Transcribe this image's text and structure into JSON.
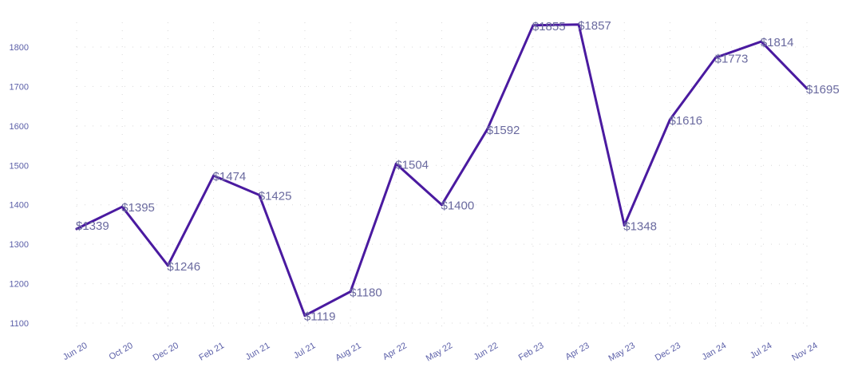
{
  "chart_data": {
    "type": "line",
    "categories": [
      "Jun 20",
      "Oct 20",
      "Dec 20",
      "Feb 21",
      "Jun 21",
      "Jul 21",
      "Aug 21",
      "Apr 22",
      "May 22",
      "Jun 22",
      "Feb 23",
      "Apr 23",
      "May 23",
      "Dec 23",
      "Jan 24",
      "Jul 24",
      "Nov 24"
    ],
    "series": [
      {
        "values": [
          1339,
          1395,
          1246,
          1474,
          1425,
          1119,
          1180,
          1504,
          1400,
          1592,
          1855,
          1857,
          1348,
          1616,
          1773,
          1814,
          1695
        ],
        "color": "#4a1aa0"
      }
    ],
    "data_labels": [
      "$1339",
      "$1395",
      "$1246",
      "$1474",
      "$1425",
      "$1119",
      "$1180",
      "$1504",
      "$1400",
      "$1592",
      "$1855",
      "$1857",
      "$1348",
      "$1616",
      "$1773",
      "$1814",
      "$1695"
    ],
    "yticks": [
      1100,
      1200,
      1300,
      1400,
      1500,
      1600,
      1700,
      1800
    ],
    "ylim": [
      1090,
      1915
    ],
    "grid": true,
    "legend": "none",
    "colors": {
      "line": "#4a1aa0",
      "tick_text": "#5b5fa8",
      "label_text": "#6a6a9f",
      "grid": "#d9d9d9"
    }
  }
}
